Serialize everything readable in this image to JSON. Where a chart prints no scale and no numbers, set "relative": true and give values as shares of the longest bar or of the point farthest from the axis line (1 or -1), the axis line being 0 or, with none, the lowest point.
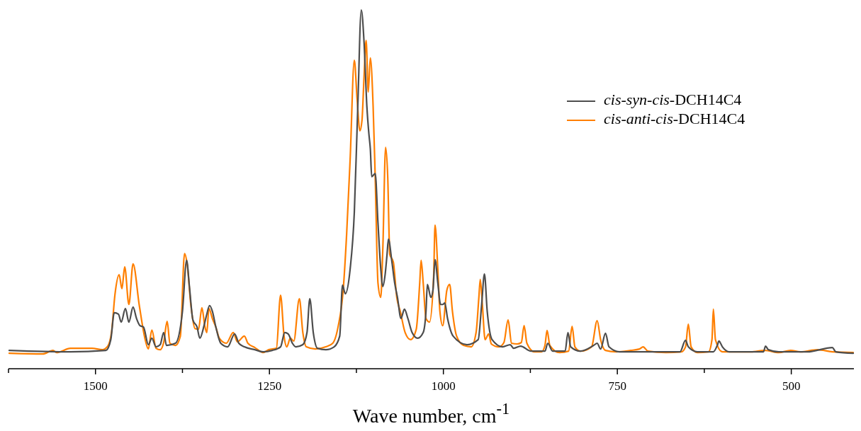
{
  "chart_data": {
    "type": "line",
    "xlabel": "Wave number, cm$^{-1}$",
    "relative": true,
    "legend": "top right",
    "xlim": [
      1625,
      410
    ],
    "xticks": [
      {
        "value": 1625,
        "label": null
      },
      1500,
      {
        "value": 1375,
        "label": null
      },
      1250,
      {
        "value": 1125,
        "label": null
      },
      1000,
      {
        "value": 875,
        "label": null
      },
      750,
      {
        "value": 625,
        "label": null
      },
      500
    ],
    "series": [
      {
        "name": "cis-syn-cis-DCH14C4",
        "color": "#4d4d4d",
        "x": [
          1624,
          1536,
          1485,
          1478,
          1473,
          1467,
          1463,
          1457,
          1452,
          1446,
          1441,
          1436,
          1431,
          1424,
          1419,
          1413,
          1407,
          1402,
          1398,
          1385,
          1375,
          1369,
          1365,
          1360,
          1354,
          1350,
          1344,
          1340,
          1336,
          1332,
          1327,
          1320,
          1310,
          1300,
          1294,
          1286,
          1271,
          1259,
          1246,
          1234,
          1228,
          1223,
          1217,
          1212,
          1202,
          1196,
          1192,
          1187,
          1181,
          1169,
          1157,
          1149,
          1145,
          1141,
          1134,
          1128,
          1123,
          1118,
          1114,
          1110,
          1107,
          1105,
          1103,
          1098,
          1094,
          1090,
          1087,
          1084,
          1081,
          1079,
          1074,
          1070,
          1066,
          1061,
          1056,
          1051,
          1045,
          1037,
          1029,
          1025,
          1023,
          1018,
          1015,
          1012,
          1008,
          1004,
          1001,
          998,
          994,
          986,
          966,
          950,
          945,
          941,
          937,
          930,
          915,
          904,
          899,
          889,
          874,
          854,
          850,
          843,
          825,
          821,
          817,
          803,
          784,
          779,
          774,
          767,
          762,
          747,
          660,
          652,
          648,
          635,
          612,
          606,
          604,
          599,
          589,
          540,
          537,
          533,
          518,
          477,
          441,
          436,
          411
        ],
        "values": [
          0.051,
          0.047,
          0.051,
          0.081,
          0.156,
          0.152,
          0.13,
          0.168,
          0.13,
          0.172,
          0.14,
          0.12,
          0.116,
          0.067,
          0.085,
          0.061,
          0.067,
          0.101,
          0.065,
          0.071,
          0.16,
          0.302,
          0.229,
          0.136,
          0.116,
          0.085,
          0.12,
          0.152,
          0.176,
          0.16,
          0.116,
          0.071,
          0.061,
          0.097,
          0.071,
          0.061,
          0.053,
          0.047,
          0.051,
          0.061,
          0.101,
          0.097,
          0.071,
          0.061,
          0.067,
          0.101,
          0.195,
          0.101,
          0.057,
          0.053,
          0.061,
          0.091,
          0.233,
          0.209,
          0.278,
          0.436,
          0.732,
          1,
          0.909,
          0.732,
          0.653,
          0.613,
          0.535,
          0.544,
          0.406,
          0.278,
          0.229,
          0.258,
          0.318,
          0.361,
          0.298,
          0.239,
          0.199,
          0.14,
          0.166,
          0.14,
          0.101,
          0.085,
          0.101,
          0.16,
          0.235,
          0.199,
          0.219,
          0.304,
          0.239,
          0.179,
          0.179,
          0.183,
          0.14,
          0.091,
          0.067,
          0.081,
          0.179,
          0.264,
          0.16,
          0.081,
          0.061,
          0.067,
          0.057,
          0.063,
          0.049,
          0.049,
          0.071,
          0.049,
          0.049,
          0.101,
          0.061,
          0.049,
          0.065,
          0.071,
          0.055,
          0.099,
          0.061,
          0.047,
          0.047,
          0.079,
          0.061,
          0.047,
          0.047,
          0.067,
          0.077,
          0.061,
          0.047,
          0.047,
          0.063,
          0.053,
          0.047,
          0.047,
          0.059,
          0.047,
          0.043
        ]
      },
      {
        "name": "cis-anti-cis-DCH14C4",
        "color": "#ff7f00",
        "x": [
          1624,
          1576,
          1561,
          1556,
          1536,
          1505,
          1490,
          1483,
          1477,
          1472,
          1466,
          1462,
          1458,
          1452,
          1446,
          1437,
          1429,
          1424,
          1419,
          1413,
          1407,
          1402,
          1397,
          1393,
          1385,
          1378,
          1372,
          1368,
          1363,
          1357,
          1352,
          1347,
          1343,
          1340,
          1337,
          1332,
          1327,
          1322,
          1312,
          1302,
          1296,
          1286,
          1281,
          1271,
          1259,
          1251,
          1240,
          1234,
          1229,
          1225,
          1220,
          1215,
          1207,
          1202,
          1197,
          1184,
          1169,
          1159,
          1151,
          1144,
          1139,
          1134,
          1128,
          1124,
          1120,
          1117,
          1114,
          1111,
          1108,
          1105,
          1101,
          1098,
          1094,
          1090,
          1087,
          1083,
          1080,
          1077,
          1072,
          1067,
          1062,
          1055,
          1047,
          1039,
          1034,
          1032,
          1029,
          1025,
          1020,
          1014,
          1012,
          1008,
          1005,
          1001,
          995,
          991,
          987,
          981,
          971,
          960,
          953,
          949,
          947,
          944,
          940,
          935,
          931,
          920,
          913,
          907,
          902,
          894,
          888,
          884,
          880,
          869,
          859,
          854,
          851,
          847,
          833,
          820,
          815,
          811,
          803,
          787,
          779,
          774,
          767,
          752,
          731,
          718,
          713,
          706,
          680,
          658,
          652,
          648,
          644,
          635,
          619,
          614,
          612,
          609,
          599,
          558,
          538,
          518,
          501,
          487,
          462,
          441,
          411
        ],
        "values": [
          0.043,
          0.041,
          0.051,
          0.045,
          0.057,
          0.057,
          0.053,
          0.061,
          0.101,
          0.207,
          0.262,
          0.223,
          0.284,
          0.179,
          0.292,
          0.176,
          0.085,
          0.055,
          0.108,
          0.057,
          0.053,
          0.073,
          0.132,
          0.071,
          0.065,
          0.091,
          0.321,
          0.288,
          0.179,
          0.112,
          0.11,
          0.17,
          0.12,
          0.101,
          0.168,
          0.14,
          0.116,
          0.085,
          0.071,
          0.101,
          0.075,
          0.091,
          0.071,
          0.059,
          0.045,
          0.053,
          0.057,
          0.205,
          0.091,
          0.061,
          0.085,
          0.077,
          0.195,
          0.101,
          0.061,
          0.055,
          0.061,
          0.071,
          0.12,
          0.219,
          0.377,
          0.584,
          0.86,
          0.751,
          0.663,
          0.692,
          0.815,
          0.915,
          0.771,
          0.866,
          0.732,
          0.535,
          0.239,
          0.199,
          0.337,
          0.617,
          0.535,
          0.318,
          0.298,
          0.199,
          0.16,
          0.101,
          0.081,
          0.11,
          0.239,
          0.302,
          0.239,
          0.14,
          0.13,
          0.258,
          0.4,
          0.278,
          0.16,
          0.12,
          0.219,
          0.235,
          0.16,
          0.091,
          0.065,
          0.061,
          0.101,
          0.199,
          0.249,
          0.179,
          0.081,
          0.097,
          0.069,
          0.061,
          0.073,
          0.136,
          0.071,
          0.069,
          0.073,
          0.12,
          0.071,
          0.047,
          0.047,
          0.065,
          0.107,
          0.065,
          0.045,
          0.049,
          0.118,
          0.061,
          0.049,
          0.061,
          0.134,
          0.081,
          0.051,
          0.047,
          0.051,
          0.055,
          0.061,
          0.049,
          0.045,
          0.047,
          0.061,
          0.124,
          0.061,
          0.045,
          0.047,
          0.081,
          0.166,
          0.081,
          0.047,
          0.047,
          0.051,
          0.045,
          0.051,
          0.047,
          0.053,
          0.047,
          0.045
        ]
      }
    ]
  }
}
